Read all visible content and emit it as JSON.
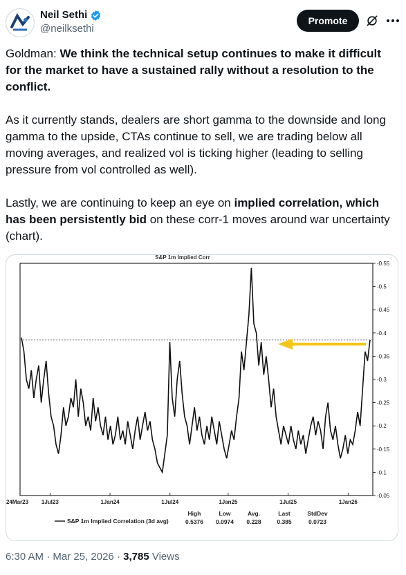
{
  "author": {
    "display_name": "Neil Sethi",
    "handle": "@neilksethi",
    "verified": true,
    "avatar_icon": "sa-logo-avatar-icon"
  },
  "actions": {
    "promote_label": "Promote",
    "grok_icon": "grok-icon",
    "more_icon": "more-icon"
  },
  "tweet": {
    "p1_prefix": "Goldman: ",
    "p1_bold": "We think the technical setup continues to make it difficult for the market to have a sustained rally without a resolution to the conflict.",
    "p2": "As it currently stands, dealers are short gamma to the downside and long gamma to the upside, CTAs continue to sell, we are trading below all moving averages, and realized vol is ticking higher (leading to selling pressure from vol controlled as well).",
    "p3_prefix": "Lastly, we are continuing to keep an eye on ",
    "p3_bold": "implied correlation, which has been persistently bid",
    "p3_suffix": " on these corr-1 moves around war uncertainty (chart)."
  },
  "meta": {
    "time": "6:30 AM",
    "sep1": " · ",
    "date": "Mar 25, 2026",
    "sep2": " · ",
    "views_count": "3,785",
    "views_label": " Views"
  },
  "chart_data": {
    "type": "line",
    "title": "S&P 1m Implied Corr",
    "ylim": [
      0.05,
      0.55
    ],
    "yticks": [
      "0.55",
      "0.5",
      "0.45",
      "0.4",
      "0.35",
      "0.3",
      "0.25",
      "0.2",
      "0.15",
      "0.1",
      "0.05"
    ],
    "xticks": [
      "24Mar23",
      "1Jul23",
      "1Jan24",
      "1Jul24",
      "1Jan25",
      "1Jul25",
      "1Jan26"
    ],
    "reference_line": 0.385,
    "arrow_color": "#f5c518",
    "series": [
      {
        "name": "S&P 1m Implied Correlation (3d avg)",
        "values": [
          0.39,
          0.36,
          0.3,
          0.28,
          0.32,
          0.26,
          0.3,
          0.33,
          0.25,
          0.3,
          0.34,
          0.27,
          0.22,
          0.2,
          0.16,
          0.14,
          0.18,
          0.24,
          0.2,
          0.22,
          0.26,
          0.24,
          0.3,
          0.22,
          0.28,
          0.25,
          0.2,
          0.22,
          0.19,
          0.26,
          0.21,
          0.24,
          0.2,
          0.18,
          0.22,
          0.17,
          0.2,
          0.16,
          0.18,
          0.22,
          0.17,
          0.19,
          0.16,
          0.21,
          0.18,
          0.15,
          0.19,
          0.22,
          0.17,
          0.2,
          0.23,
          0.19,
          0.21,
          0.17,
          0.15,
          0.12,
          0.11,
          0.1,
          0.14,
          0.18,
          0.38,
          0.26,
          0.22,
          0.3,
          0.34,
          0.27,
          0.22,
          0.2,
          0.16,
          0.2,
          0.24,
          0.19,
          0.22,
          0.18,
          0.16,
          0.2,
          0.17,
          0.22,
          0.19,
          0.16,
          0.21,
          0.18,
          0.15,
          0.13,
          0.16,
          0.19,
          0.17,
          0.22,
          0.26,
          0.36,
          0.32,
          0.38,
          0.44,
          0.54,
          0.42,
          0.4,
          0.33,
          0.38,
          0.31,
          0.35,
          0.3,
          0.24,
          0.28,
          0.22,
          0.19,
          0.16,
          0.2,
          0.18,
          0.16,
          0.2,
          0.17,
          0.15,
          0.19,
          0.16,
          0.18,
          0.14,
          0.17,
          0.2,
          0.22,
          0.18,
          0.21,
          0.19,
          0.15,
          0.22,
          0.25,
          0.19,
          0.17,
          0.2,
          0.16,
          0.13,
          0.15,
          0.18,
          0.14,
          0.17,
          0.16,
          0.19,
          0.23,
          0.2,
          0.28,
          0.36,
          0.34,
          0.385
        ]
      }
    ],
    "stats": {
      "labels": [
        "High",
        "Low",
        "Avg.",
        "Last",
        "StdDev"
      ],
      "values": [
        "0.5376",
        "0.0974",
        "0.228",
        "0.385",
        "0.0723"
      ]
    }
  }
}
